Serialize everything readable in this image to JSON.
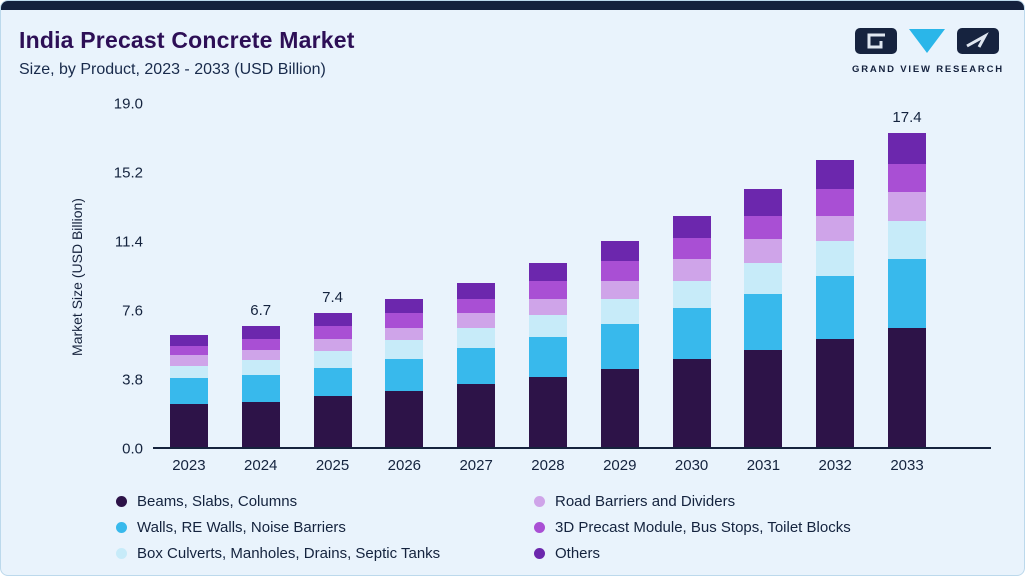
{
  "header": {
    "title": "India Precast Concrete Market",
    "subtitle": "Size, by Product, 2023 - 2033 (USD Billion)"
  },
  "logo": {
    "text": "GRAND VIEW RESEARCH",
    "navy": "#16233f",
    "cyan": "#2ab6e9"
  },
  "colors": {
    "background": "#e9f3fc",
    "top_bar": "#14213d",
    "title_text": "#2d0f56",
    "body_text": "#14233e",
    "axis_line": "#16233d"
  },
  "chart_data": {
    "type": "bar",
    "stacked": true,
    "title": "India Precast Concrete Market",
    "subtitle": "Size, by Product, 2023 - 2033 (USD Billion)",
    "xlabel": "",
    "ylabel": "Market Size (USD Billion)",
    "ylim": [
      0,
      19.0
    ],
    "yticks": [
      0.0,
      3.8,
      7.6,
      11.4,
      15.2,
      19.0
    ],
    "grid": false,
    "legend_position": "bottom",
    "categories": [
      "2023",
      "2024",
      "2025",
      "2026",
      "2027",
      "2028",
      "2029",
      "2030",
      "2031",
      "2032",
      "2033"
    ],
    "series": [
      {
        "name": "Beams, Slabs, Columns",
        "color": "#2d1348",
        "values": [
          2.4,
          2.5,
          2.8,
          3.1,
          3.5,
          3.9,
          4.3,
          4.9,
          5.4,
          6.0,
          6.6
        ]
      },
      {
        "name": "Walls, RE Walls, Noise Barriers",
        "color": "#38b9ec",
        "values": [
          1.4,
          1.5,
          1.6,
          1.8,
          2.0,
          2.2,
          2.5,
          2.8,
          3.1,
          3.5,
          3.8
        ]
      },
      {
        "name": "Box Culverts, Manholes, Drains, Septic Tanks",
        "color": "#c7ebf9",
        "values": [
          0.7,
          0.8,
          0.9,
          1.0,
          1.1,
          1.2,
          1.4,
          1.5,
          1.7,
          1.9,
          2.1
        ]
      },
      {
        "name": "Road Barriers and Dividers",
        "color": "#cfa4e9",
        "values": [
          0.6,
          0.6,
          0.7,
          0.7,
          0.8,
          0.9,
          1.0,
          1.2,
          1.3,
          1.4,
          1.6
        ]
      },
      {
        "name": "3D Precast Module, Bus Stops, Toilet Blocks",
        "color": "#a94fd4",
        "values": [
          0.5,
          0.6,
          0.7,
          0.8,
          0.8,
          1.0,
          1.1,
          1.2,
          1.3,
          1.5,
          1.6
        ]
      },
      {
        "name": "Others",
        "color": "#6c27ad",
        "values": [
          0.6,
          0.7,
          0.7,
          0.8,
          0.9,
          1.0,
          1.1,
          1.2,
          1.5,
          1.6,
          1.7
        ]
      }
    ],
    "bar_labels": [
      "",
      "6.7",
      "7.4",
      "",
      "",
      "",
      "",
      "",
      "",
      "",
      "17.4"
    ],
    "annotated_totals": {
      "2024": 6.7,
      "2025": 7.4,
      "2033": 17.4
    }
  }
}
